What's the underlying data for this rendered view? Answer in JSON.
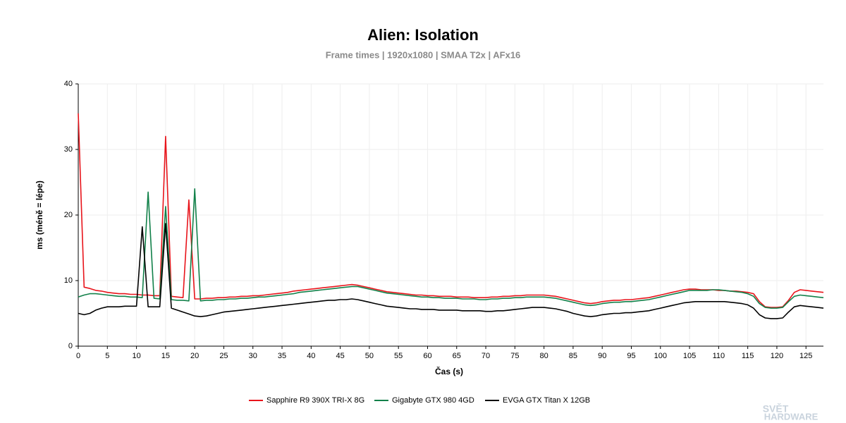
{
  "chart_data": {
    "type": "line",
    "title": "Alien: Isolation",
    "subtitle": "Frame times | 1920x1080 | SMAA T2x | AFx16",
    "x_label": "Čas (s)",
    "y_label": "ms (méně = lépe)",
    "watermark": [
      "SVĚT",
      "HARDWARE"
    ],
    "xlim": [
      0,
      128
    ],
    "ylim": [
      0,
      40
    ],
    "xticks": [
      0,
      5,
      10,
      15,
      20,
      25,
      30,
      35,
      40,
      45,
      50,
      55,
      60,
      65,
      70,
      75,
      80,
      85,
      90,
      95,
      100,
      105,
      110,
      115,
      120,
      125
    ],
    "yticks": [
      0,
      10,
      20,
      30,
      40
    ],
    "grid": true,
    "x": [
      0,
      1,
      2,
      3,
      4,
      5,
      6,
      7,
      8,
      9,
      10,
      11,
      12,
      13,
      14,
      15,
      16,
      17,
      18,
      19,
      20,
      21,
      22,
      23,
      24,
      25,
      26,
      27,
      28,
      29,
      30,
      31,
      32,
      33,
      34,
      35,
      36,
      37,
      38,
      39,
      40,
      41,
      42,
      43,
      44,
      45,
      46,
      47,
      48,
      49,
      50,
      51,
      52,
      53,
      54,
      55,
      56,
      57,
      58,
      59,
      60,
      61,
      62,
      63,
      64,
      65,
      66,
      67,
      68,
      69,
      70,
      71,
      72,
      73,
      74,
      75,
      76,
      77,
      78,
      79,
      80,
      81,
      82,
      83,
      84,
      85,
      86,
      87,
      88,
      89,
      90,
      91,
      92,
      93,
      94,
      95,
      96,
      97,
      98,
      99,
      100,
      101,
      102,
      103,
      104,
      105,
      106,
      107,
      108,
      109,
      110,
      111,
      112,
      113,
      114,
      115,
      116,
      117,
      118,
      119,
      120,
      121,
      122,
      123,
      124,
      125,
      126,
      127,
      128
    ],
    "series": [
      {
        "name": "Sapphire R9 390X TRI-X 8G",
        "color": "#e8141b",
        "values": [
          35.5,
          9,
          8.8,
          8.5,
          8.4,
          8.2,
          8.1,
          8,
          8,
          7.9,
          7.9,
          7.8,
          7.8,
          7.7,
          7.7,
          32,
          7.6,
          7.5,
          7.4,
          22.3,
          7.2,
          7.2,
          7.3,
          7.3,
          7.4,
          7.4,
          7.5,
          7.5,
          7.6,
          7.6,
          7.7,
          7.7,
          7.8,
          7.9,
          8,
          8.1,
          8.2,
          8.4,
          8.5,
          8.6,
          8.7,
          8.8,
          8.9,
          9,
          9.1,
          9.2,
          9.3,
          9.4,
          9.3,
          9.1,
          8.9,
          8.7,
          8.5,
          8.3,
          8.2,
          8.1,
          8,
          7.9,
          7.8,
          7.8,
          7.7,
          7.7,
          7.6,
          7.6,
          7.6,
          7.5,
          7.5,
          7.5,
          7.4,
          7.4,
          7.4,
          7.5,
          7.5,
          7.6,
          7.6,
          7.7,
          7.7,
          7.8,
          7.8,
          7.8,
          7.8,
          7.7,
          7.6,
          7.4,
          7.2,
          7,
          6.8,
          6.6,
          6.5,
          6.6,
          6.8,
          6.9,
          7,
          7,
          7.1,
          7.1,
          7.2,
          7.3,
          7.4,
          7.6,
          7.8,
          8,
          8.2,
          8.4,
          8.6,
          8.7,
          8.7,
          8.6,
          8.6,
          8.6,
          8.5,
          8.5,
          8.4,
          8.4,
          8.3,
          8.2,
          8,
          6.8,
          6,
          5.9,
          5.9,
          6,
          7,
          8.2,
          8.6,
          8.5,
          8.4,
          8.3,
          8.2
        ]
      },
      {
        "name": "Gigabyte GTX 980 4GD",
        "color": "#12814a",
        "values": [
          7.5,
          7.8,
          8,
          8,
          7.9,
          7.8,
          7.7,
          7.6,
          7.6,
          7.5,
          7.5,
          7.4,
          23.5,
          7.3,
          7.2,
          21.3,
          7.1,
          7,
          7,
          6.9,
          24,
          6.9,
          7,
          7,
          7.1,
          7.1,
          7.2,
          7.2,
          7.3,
          7.3,
          7.4,
          7.5,
          7.5,
          7.6,
          7.7,
          7.8,
          7.9,
          8,
          8.2,
          8.3,
          8.4,
          8.5,
          8.6,
          8.7,
          8.8,
          8.9,
          9,
          9.1,
          9.1,
          8.9,
          8.7,
          8.5,
          8.3,
          8.1,
          8,
          7.9,
          7.8,
          7.7,
          7.6,
          7.5,
          7.5,
          7.4,
          7.4,
          7.3,
          7.3,
          7.3,
          7.2,
          7.2,
          7.2,
          7.1,
          7.1,
          7.2,
          7.2,
          7.3,
          7.3,
          7.4,
          7.4,
          7.5,
          7.5,
          7.5,
          7.5,
          7.4,
          7.3,
          7.1,
          6.9,
          6.7,
          6.5,
          6.3,
          6.2,
          6.3,
          6.5,
          6.6,
          6.7,
          6.7,
          6.8,
          6.8,
          6.9,
          7,
          7.1,
          7.3,
          7.5,
          7.7,
          7.9,
          8.1,
          8.3,
          8.5,
          8.5,
          8.5,
          8.5,
          8.6,
          8.6,
          8.5,
          8.4,
          8.3,
          8.2,
          8,
          7.6,
          6.5,
          5.9,
          5.8,
          5.8,
          5.9,
          6.8,
          7.6,
          7.8,
          7.7,
          7.6,
          7.5,
          7.4
        ]
      },
      {
        "name": "EVGA GTX Titan X 12GB",
        "color": "#000000",
        "values": [
          5,
          4.8,
          5,
          5.5,
          5.8,
          6,
          6,
          6,
          6.1,
          6.1,
          6.1,
          18.2,
          6,
          6,
          6,
          18.7,
          5.8,
          5.5,
          5.2,
          4.9,
          4.6,
          4.5,
          4.6,
          4.8,
          5,
          5.2,
          5.3,
          5.4,
          5.5,
          5.6,
          5.7,
          5.8,
          5.9,
          6,
          6.1,
          6.2,
          6.3,
          6.4,
          6.5,
          6.6,
          6.7,
          6.8,
          6.9,
          7,
          7,
          7.1,
          7.1,
          7.2,
          7.1,
          6.9,
          6.7,
          6.5,
          6.3,
          6.1,
          6,
          5.9,
          5.8,
          5.7,
          5.7,
          5.6,
          5.6,
          5.6,
          5.5,
          5.5,
          5.5,
          5.5,
          5.4,
          5.4,
          5.4,
          5.4,
          5.3,
          5.3,
          5.4,
          5.4,
          5.5,
          5.6,
          5.7,
          5.8,
          5.9,
          5.9,
          5.9,
          5.8,
          5.7,
          5.5,
          5.3,
          5,
          4.8,
          4.6,
          4.5,
          4.6,
          4.8,
          4.9,
          5,
          5,
          5.1,
          5.1,
          5.2,
          5.3,
          5.4,
          5.6,
          5.8,
          6,
          6.2,
          6.4,
          6.6,
          6.7,
          6.8,
          6.8,
          6.8,
          6.8,
          6.8,
          6.8,
          6.7,
          6.6,
          6.5,
          6.3,
          5.8,
          4.8,
          4.3,
          4.2,
          4.2,
          4.3,
          5.2,
          6,
          6.2,
          6.1,
          6,
          5.9,
          5.8
        ]
      }
    ]
  }
}
